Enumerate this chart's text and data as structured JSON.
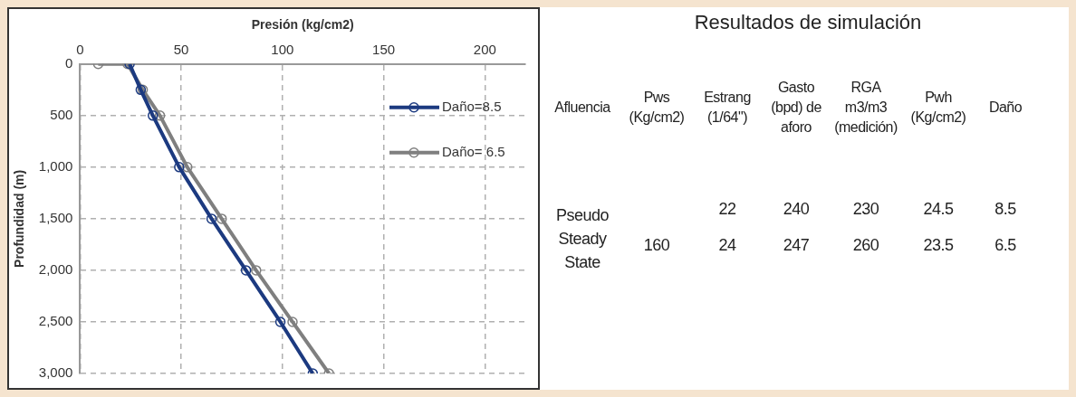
{
  "chart_data": [
    {
      "type": "line",
      "xlabel": "Presión (kg/cm2)",
      "ylabel": "Profundidad (m)",
      "xlim": [
        0,
        220
      ],
      "xticks": [
        0,
        50,
        100,
        150,
        200
      ],
      "ylim": [
        3000,
        0
      ],
      "yticks": [
        0,
        500,
        {
          "value": 1000,
          "label": "1,000"
        },
        {
          "value": 1500,
          "label": "1,500"
        },
        {
          "value": 2000,
          "label": "2,000"
        },
        {
          "value": 2500,
          "label": "2,500"
        },
        {
          "value": 3000,
          "label": "3,000"
        }
      ],
      "grid": true,
      "legend": "top right",
      "marker": "circle",
      "series": [
        {
          "name": "Daño=8.5",
          "color": "#1c3a80",
          "x": [
            24.5,
            30,
            36,
            49,
            65,
            82,
            99,
            115
          ],
          "values": [
            0,
            250,
            500,
            1000,
            1500,
            2000,
            2500,
            3000
          ]
        },
        {
          "name": "Daño= 6.5",
          "color": "#7f7f7f",
          "x": [
            9,
            23.5,
            31,
            39.5,
            53,
            70,
            87,
            105,
            123
          ],
          "values": [
            0,
            0,
            250,
            500,
            1000,
            1500,
            2000,
            2500,
            3000
          ]
        }
      ]
    },
    {
      "type": "other",
      "title": "Resultados de simulación",
      "annotations": [
        "Afluencia",
        "Pws (Kg/cm2)",
        "Estrang (1/64\")",
        "Gasto (bpd) de aforo",
        "RGA m3/m3 (medición)",
        "Pwh (Kg/cm2)",
        "Daño",
        "22",
        "240",
        "230",
        "24.5",
        "8.5",
        "Pseudo Steady State",
        "160",
        "24",
        "247",
        "260",
        "23.5",
        "6.5"
      ]
    }
  ]
}
